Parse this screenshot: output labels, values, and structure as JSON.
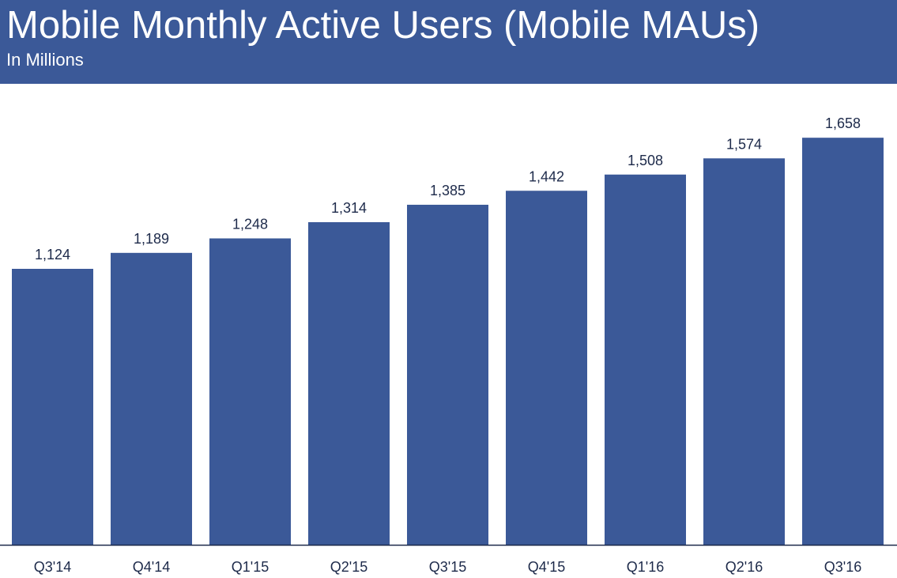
{
  "header": {
    "title": "Mobile Monthly Active Users (Mobile MAUs)",
    "subtitle": "In Millions"
  },
  "colors": {
    "header_bg": "#3b5998",
    "bar": "#3b5998",
    "text": "#1d2a4a",
    "axis": "#1d2a4a"
  },
  "chart_data": {
    "type": "bar",
    "title": "Mobile Monthly Active Users (Mobile MAUs)",
    "subtitle": "In Millions",
    "categories": [
      "Q3'14",
      "Q4'14",
      "Q1'15",
      "Q2'15",
      "Q3'15",
      "Q4'15",
      "Q1'16",
      "Q2'16",
      "Q3'16"
    ],
    "values": [
      1124,
      1189,
      1248,
      1314,
      1385,
      1442,
      1508,
      1574,
      1658
    ],
    "data_labels": [
      "1,124",
      "1,189",
      "1,248",
      "1,314",
      "1,385",
      "1,442",
      "1,508",
      "1,574",
      "1,658"
    ],
    "xlabel": "",
    "ylabel": "",
    "grid": false,
    "legend": "none"
  }
}
